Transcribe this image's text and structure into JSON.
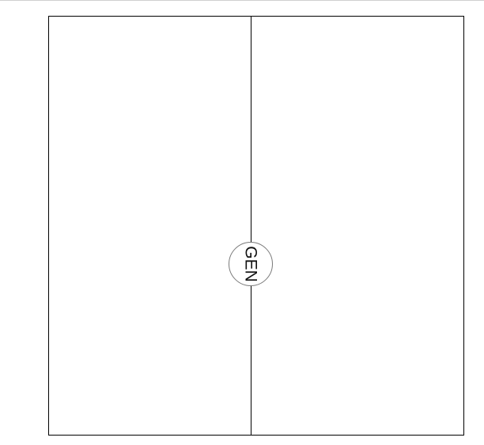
{
  "symbol": {
    "label": "GEN"
  },
  "colors": {
    "outline": "#000000",
    "circle_stroke": "#7a7a7a",
    "background": "#ffffff"
  }
}
